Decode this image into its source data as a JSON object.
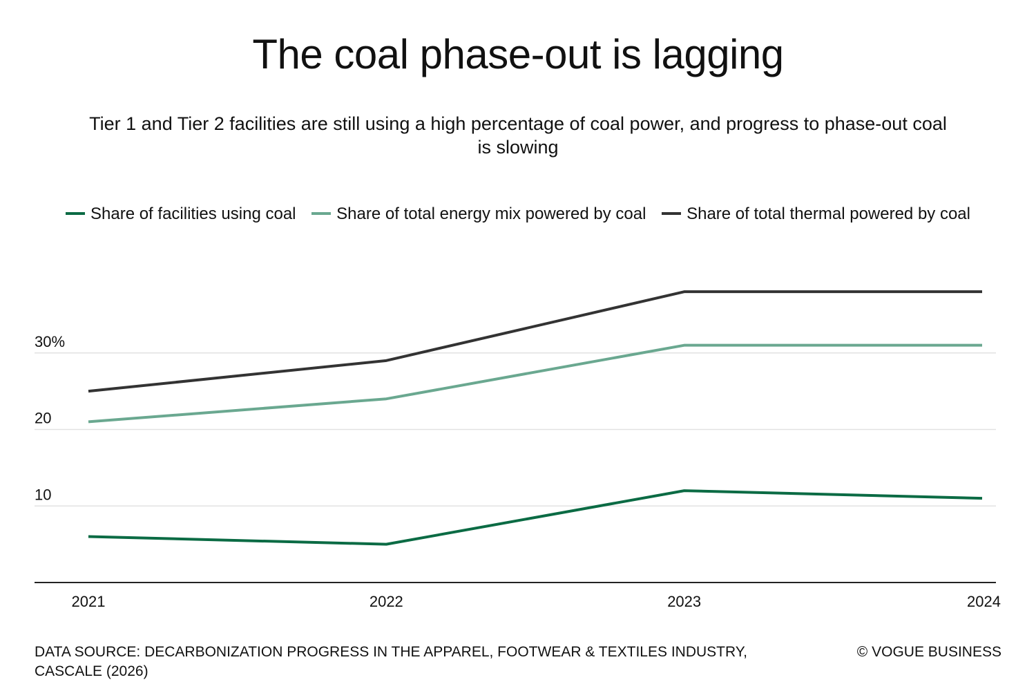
{
  "title": "The coal phase-out is lagging",
  "subtitle": "Tier 1 and Tier 2 facilities are still using a high percentage of coal power, and progress to phase-out coal is slowing",
  "source": "DATA SOURCE: DECARBONIZATION PROGRESS IN THE APPAREL, FOOTWEAR & TEXTILES INDUSTRY, CASCALE (2026)",
  "copyright": "© VOGUE BUSINESS",
  "colors": {
    "facilities": "#0b6b44",
    "energy_mix": "#6aa890",
    "thermal": "#333333",
    "grid": "#e2e2e2",
    "axis": "#222222"
  },
  "chart_data": {
    "type": "line",
    "title": "The coal phase-out is lagging",
    "subtitle": "Tier 1 and Tier 2 facilities are still using a high percentage of coal power, and progress to phase-out coal is slowing",
    "xlabel": "",
    "ylabel": "",
    "categories": [
      "2021",
      "2022",
      "2023",
      "2024"
    ],
    "ylim": [
      0,
      40
    ],
    "yticks": [
      10,
      20,
      30
    ],
    "ytick_labels": [
      "10",
      "20",
      "30%"
    ],
    "grid": true,
    "legend_position": "top-center",
    "series": [
      {
        "name": "Share of facilities using coal",
        "color_key": "facilities",
        "values": [
          6,
          5,
          12,
          11
        ]
      },
      {
        "name": "Share of total energy mix powered by coal",
        "color_key": "energy_mix",
        "values": [
          21,
          24,
          31,
          31
        ]
      },
      {
        "name": "Share of total thermal powered by coal",
        "color_key": "thermal",
        "values": [
          25,
          29,
          38,
          38
        ]
      }
    ]
  }
}
